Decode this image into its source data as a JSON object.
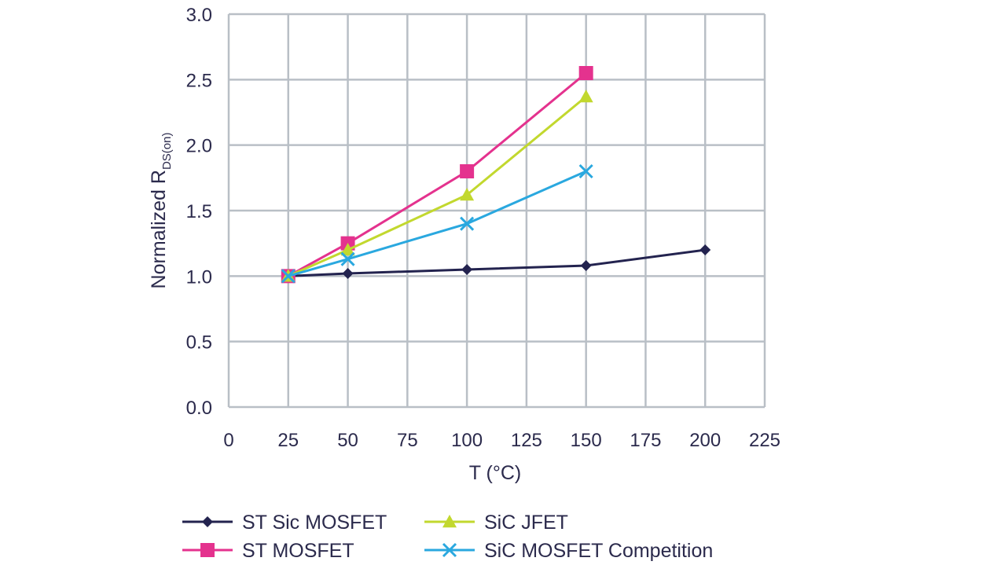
{
  "chart_data": {
    "type": "line",
    "x_ticks": [
      "0",
      "25",
      "50",
      "75",
      "100",
      "125",
      "150",
      "175",
      "200",
      "225"
    ],
    "y_ticks": [
      "0.0",
      "0.5",
      "1.0",
      "1.5",
      "2.0",
      "2.5",
      "3.0"
    ],
    "xlabel": "T (°C)",
    "ylabel_main": "Normalized R",
    "ylabel_sub": "DS(on)",
    "xlim": [
      0,
      225
    ],
    "ylim": [
      0,
      3.0
    ],
    "grid": true,
    "legend_position": "bottom",
    "series": [
      {
        "name": "ST Sic MOSFET",
        "color": "#23234f",
        "marker": "diamond",
        "x": [
          25,
          50,
          100,
          150,
          200
        ],
        "y": [
          1.0,
          1.02,
          1.05,
          1.08,
          1.2
        ]
      },
      {
        "name": "ST MOSFET",
        "color": "#e4328e",
        "marker": "square",
        "x": [
          25,
          50,
          100,
          150
        ],
        "y": [
          1.0,
          1.25,
          1.8,
          2.55
        ]
      },
      {
        "name": "SiC JFET",
        "color": "#c2d82e",
        "marker": "triangle",
        "x": [
          25,
          50,
          100,
          150
        ],
        "y": [
          1.0,
          1.2,
          1.62,
          2.37
        ]
      },
      {
        "name": "SiC MOSFET Competition",
        "color": "#2aa8df",
        "marker": "x",
        "x": [
          25,
          50,
          100,
          150
        ],
        "y": [
          1.0,
          1.13,
          1.4,
          1.8
        ]
      }
    ]
  }
}
